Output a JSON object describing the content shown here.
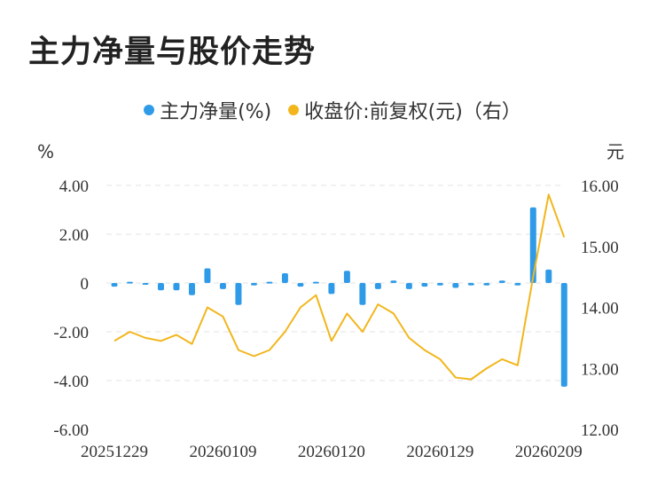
{
  "chart_data": {
    "type": "bar+line",
    "title": "主力净量与股价走势",
    "legend": [
      {
        "name": "主力净量(%)",
        "color": "#2f9be8"
      },
      {
        "name": "收盘价:前复权(元)（右）",
        "color": "#f2b61c"
      }
    ],
    "left_unit": "%",
    "right_unit": "元",
    "left_ylim": [
      -6,
      4
    ],
    "left_ticks": [
      "4.00",
      "2.00",
      "0",
      "-2.00",
      "-4.00",
      "-6.00"
    ],
    "left_tick_values": [
      4,
      2,
      0,
      -2,
      -4,
      -6
    ],
    "right_ylim": [
      12,
      16
    ],
    "right_ticks": [
      "16.00",
      "15.00",
      "14.00",
      "13.00",
      "12.00"
    ],
    "right_tick_values": [
      16,
      15,
      14,
      13,
      12
    ],
    "x_tick_labels": [
      {
        "label": "20251229",
        "index": 0
      },
      {
        "label": "20260109",
        "index": 7
      },
      {
        "label": "20260120",
        "index": 14
      },
      {
        "label": "20260129",
        "index": 21
      },
      {
        "label": "20260209",
        "index": 28
      }
    ],
    "series": [
      {
        "name": "主力净量(%)",
        "type": "bar",
        "values": [
          -0.15,
          0.05,
          -0.05,
          -0.3,
          -0.3,
          -0.5,
          0.6,
          -0.25,
          -0.9,
          -0.1,
          0.05,
          0.4,
          -0.15,
          0.05,
          -0.45,
          0.5,
          -0.9,
          -0.25,
          0.1,
          -0.25,
          -0.15,
          -0.1,
          -0.2,
          -0.1,
          -0.1,
          0.1,
          -0.1,
          3.1,
          0.55,
          -4.25
        ]
      },
      {
        "name": "收盘价:前复权(元)（右）",
        "type": "line",
        "values": [
          13.45,
          13.6,
          13.5,
          13.45,
          13.55,
          13.4,
          14.0,
          13.85,
          13.3,
          13.2,
          13.3,
          13.6,
          14.0,
          14.2,
          13.45,
          13.9,
          13.6,
          14.05,
          13.9,
          13.5,
          13.3,
          13.15,
          12.85,
          12.82,
          13.0,
          13.15,
          13.05,
          14.5,
          15.85,
          15.15
        ]
      }
    ]
  }
}
